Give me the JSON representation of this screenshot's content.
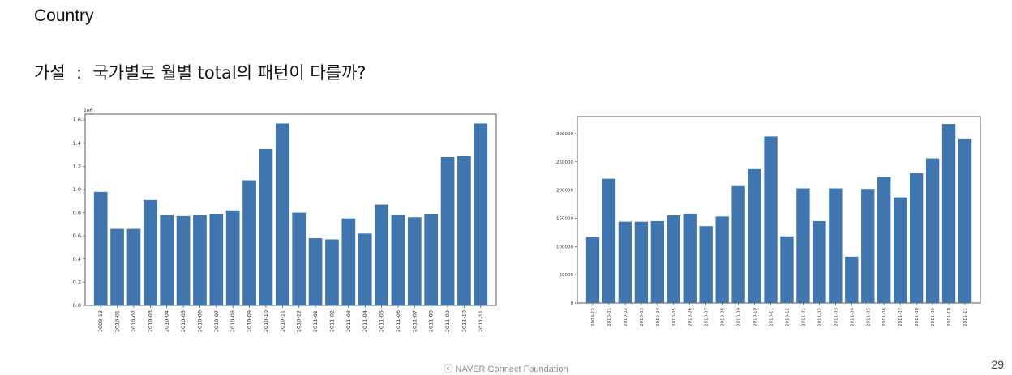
{
  "slide": {
    "title": "Country",
    "hypothesis": "가설  :  국가별로 월별 total의 패턴이 다를까?",
    "footer": "ⓒ NAVER Connect Foundation",
    "page_number": "29"
  },
  "colors": {
    "bar": "#3f76b0",
    "axis": "#333333",
    "background": "#ffffff"
  },
  "chart_data": [
    {
      "type": "bar",
      "title": "",
      "xlabel": "",
      "ylabel": "",
      "offset_text": "1e6",
      "ylim": [
        0,
        1.65
      ],
      "yticks": [
        "0.0",
        "0.2",
        "0.4",
        "0.6",
        "0.8",
        "1.0",
        "1.2",
        "1.4",
        "1.6"
      ],
      "yticks_values": [
        0,
        0.2,
        0.4,
        0.6,
        0.8,
        1.0,
        1.2,
        1.4,
        1.6
      ],
      "grid": false,
      "categories": [
        "2009-12",
        "2010-01",
        "2010-02",
        "2010-03",
        "2010-04",
        "2010-05",
        "2010-06",
        "2010-07",
        "2010-08",
        "2010-09",
        "2010-10",
        "2010-11",
        "2010-12",
        "2011-01",
        "2011-02",
        "2011-03",
        "2011-04",
        "2011-05",
        "2011-06",
        "2011-07",
        "2011-08",
        "2011-09",
        "2011-10",
        "2011-11"
      ],
      "values": [
        0.98,
        0.66,
        0.66,
        0.91,
        0.78,
        0.77,
        0.78,
        0.79,
        0.82,
        1.08,
        1.35,
        1.57,
        0.8,
        0.58,
        0.57,
        0.75,
        0.62,
        0.87,
        0.78,
        0.76,
        0.79,
        1.28,
        1.29,
        1.57
      ]
    },
    {
      "type": "bar",
      "title": "",
      "xlabel": "",
      "ylabel": "",
      "ylim": [
        0,
        330000
      ],
      "yticks": [
        "0",
        "50000",
        "100000",
        "150000",
        "200000",
        "250000",
        "300000"
      ],
      "yticks_values": [
        0,
        50000,
        100000,
        150000,
        200000,
        250000,
        300000
      ],
      "grid": false,
      "categories": [
        "2009-12",
        "2010-01",
        "2010-02",
        "2010-03",
        "2010-04",
        "2010-05",
        "2010-06",
        "2010-07",
        "2010-08",
        "2010-09",
        "2010-10",
        "2010-11",
        "2010-12",
        "2011-01",
        "2011-02",
        "2011-03",
        "2011-04",
        "2011-05",
        "2011-06",
        "2011-07",
        "2011-08",
        "2011-09",
        "2011-10",
        "2011-11"
      ],
      "values": [
        117000,
        220000,
        144000,
        144000,
        145000,
        155000,
        158000,
        136000,
        153000,
        207000,
        237000,
        295000,
        118000,
        203000,
        145000,
        203000,
        82000,
        202000,
        223000,
        187000,
        230000,
        256000,
        317000,
        290000
      ]
    }
  ]
}
